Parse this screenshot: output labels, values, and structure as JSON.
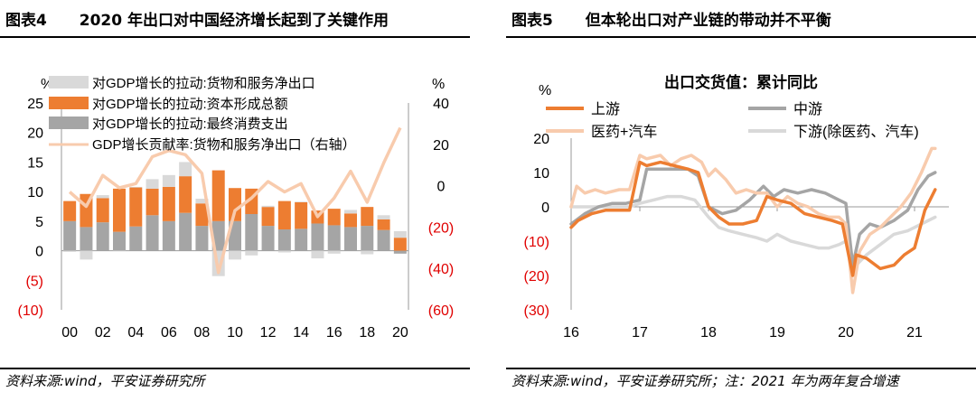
{
  "left": {
    "label": "图表4",
    "title": "2020 年出口对中国经济增长起到了关键作用",
    "source": "资料来源:wind，平安证券研究所"
  },
  "right": {
    "label": "图表5",
    "title": "但本轮出口对产业链的带动并不平衡",
    "source": "资料来源:wind，平安证券研究所；注：2021 年为两年复合增速"
  },
  "colors": {
    "orange": "#ED7D31",
    "gray": "#A5A5A5",
    "lightgray": "#D9D9D9",
    "peach": "#F8CBAD",
    "red": "#E00000"
  },
  "chart_data": [
    {
      "type": "bar",
      "stacked": true,
      "ylabel_left": "%",
      "ylabel_right": "%",
      "ylim_left": [
        -10,
        25
      ],
      "ylim_right": [
        -60,
        40
      ],
      "yticks_left": [
        "25",
        "20",
        "15",
        "10",
        "5",
        "0",
        "(5)",
        "(10)"
      ],
      "yticks_right": [
        "40",
        "20",
        "0",
        "(20)",
        "(40)",
        "(60)"
      ],
      "xtick_labels": [
        "00",
        "02",
        "04",
        "06",
        "08",
        "10",
        "12",
        "14",
        "16",
        "18",
        "20"
      ],
      "categories": [
        "2000",
        "2001",
        "2002",
        "2003",
        "2004",
        "2005",
        "2006",
        "2007",
        "2008",
        "2009",
        "2010",
        "2011",
        "2012",
        "2013",
        "2014",
        "2015",
        "2016",
        "2017",
        "2018",
        "2019",
        "2020"
      ],
      "series": [
        {
          "name": "对GDP增长的拉动:最终消费支出",
          "color": "gray",
          "values": [
            5.0,
            4.0,
            4.8,
            3.2,
            4.1,
            6.0,
            5.0,
            6.4,
            4.2,
            5.0,
            5.0,
            6.2,
            4.2,
            3.6,
            3.7,
            4.6,
            4.3,
            4.0,
            4.2,
            3.5,
            -0.5
          ]
        },
        {
          "name": "对GDP增长的拉动:资本形成总额",
          "color": "orange",
          "values": [
            3.4,
            5.6,
            4.1,
            7.3,
            6.6,
            4.5,
            5.8,
            6.2,
            3.8,
            8.6,
            5.6,
            4.3,
            3.2,
            4.8,
            4.5,
            2.2,
            2.8,
            2.3,
            3.2,
            1.8,
            2.2
          ]
        },
        {
          "name": "对GDP增长的拉动:货物和服务净出口",
          "color": "lightgray",
          "values": [
            -0.2,
            -1.5,
            0.5,
            -0.1,
            0.1,
            1.6,
            2.0,
            2.4,
            0.8,
            -4.3,
            -1.5,
            -0.8,
            0.2,
            -0.3,
            0.1,
            -1.3,
            -0.5,
            0.6,
            -0.6,
            0.7,
            1.1
          ]
        },
        {
          "name": "GDP增长贡献率:货物和服务净出口（右轴）",
          "color": "peach",
          "axis": "right",
          "values": [
            -3,
            -10,
            5,
            -1,
            1,
            14,
            17,
            15,
            6,
            -42,
            -12,
            -6,
            2,
            -3,
            1,
            -15,
            -6,
            7,
            -8,
            11,
            28
          ]
        }
      ]
    },
    {
      "type": "line",
      "title": "出口交货值：累计同比",
      "ylabel": "%",
      "ylim": [
        -30,
        20
      ],
      "yticks": [
        "20",
        "10",
        "0",
        "(10)",
        "(20)",
        "(30)"
      ],
      "xtick_labels": [
        "16",
        "17",
        "18",
        "19",
        "20",
        "21"
      ],
      "xlim": [
        2016.0,
        2021.5
      ],
      "series": [
        {
          "name": "上游",
          "color": "orange",
          "x": [
            2016.0,
            2016.1,
            2016.3,
            2016.5,
            2016.7,
            2016.85,
            2017.0,
            2017.1,
            2017.3,
            2017.5,
            2017.7,
            2017.85,
            2018.0,
            2018.15,
            2018.3,
            2018.5,
            2018.7,
            2018.85,
            2019.0,
            2019.2,
            2019.4,
            2019.6,
            2019.8,
            2019.95,
            2020.1,
            2020.15,
            2020.3,
            2020.5,
            2020.7,
            2020.85,
            2021.0,
            2021.15,
            2021.3
          ],
          "y": [
            -6,
            -4,
            -2,
            -1,
            -1,
            -1,
            13,
            12,
            13,
            12,
            11,
            10,
            0,
            -3,
            -5,
            -5,
            -4,
            3,
            2,
            1,
            -2,
            -3,
            -4,
            -5,
            -20,
            -14,
            -15,
            -18,
            -17,
            -14,
            -12,
            -1,
            5
          ]
        },
        {
          "name": "中游",
          "color": "gray",
          "x": [
            2016.0,
            2016.2,
            2016.4,
            2016.6,
            2016.8,
            2017.0,
            2017.1,
            2017.3,
            2017.5,
            2017.7,
            2017.85,
            2018.0,
            2018.2,
            2018.4,
            2018.6,
            2018.8,
            2018.95,
            2019.1,
            2019.3,
            2019.5,
            2019.7,
            2019.9,
            2020.0,
            2020.1,
            2020.2,
            2020.35,
            2020.5,
            2020.7,
            2020.9,
            2021.05,
            2021.2,
            2021.3
          ],
          "y": [
            -5,
            -2,
            0,
            1,
            1,
            2,
            11,
            11,
            11,
            11,
            9,
            0,
            -2,
            -1,
            2,
            6,
            3,
            5,
            4,
            5,
            4,
            2,
            1,
            -17,
            -8,
            -5,
            -6,
            -4,
            -1,
            5,
            9,
            10
          ]
        },
        {
          "name": "医药+汽车",
          "color": "peach",
          "x": [
            2016.0,
            2016.08,
            2016.2,
            2016.35,
            2016.5,
            2016.7,
            2016.85,
            2017.0,
            2017.1,
            2017.3,
            2017.45,
            2017.6,
            2017.75,
            2017.9,
            2018.0,
            2018.1,
            2018.25,
            2018.4,
            2018.55,
            2018.7,
            2018.85,
            2019.0,
            2019.15,
            2019.3,
            2019.45,
            2019.6,
            2019.75,
            2019.9,
            2020.0,
            2020.1,
            2020.2,
            2020.35,
            2020.5,
            2020.65,
            2020.8,
            2020.95,
            2021.1,
            2021.25,
            2021.3
          ],
          "y": [
            0,
            6,
            4,
            5,
            4,
            5,
            5,
            15,
            14,
            15,
            12,
            14,
            15,
            13,
            9,
            11,
            8,
            4,
            5,
            4,
            4,
            0,
            3,
            1,
            0,
            -2,
            -3,
            -3,
            -5,
            -25,
            -13,
            -8,
            -6,
            -3,
            0,
            4,
            10,
            17,
            17
          ]
        },
        {
          "name": "下游(除医药、汽车)",
          "color": "lightgray",
          "x": [
            2016.0,
            2016.3,
            2016.6,
            2016.85,
            2017.0,
            2017.2,
            2017.4,
            2017.6,
            2017.8,
            2018.0,
            2018.15,
            2018.3,
            2018.5,
            2018.7,
            2018.85,
            2019.0,
            2019.2,
            2019.4,
            2019.6,
            2019.75,
            2019.9,
            2020.0,
            2020.1,
            2020.3,
            2020.5,
            2020.7,
            2020.9,
            2021.1,
            2021.3
          ],
          "y": [
            0,
            0,
            0,
            0,
            1,
            2,
            3,
            3,
            2,
            -3,
            -6,
            -7,
            -8,
            -9,
            -10,
            -8,
            -10,
            -11,
            -12,
            -12,
            -11,
            -10,
            -18,
            -14,
            -11,
            -8,
            -7,
            -5,
            -3
          ]
        }
      ]
    }
  ]
}
